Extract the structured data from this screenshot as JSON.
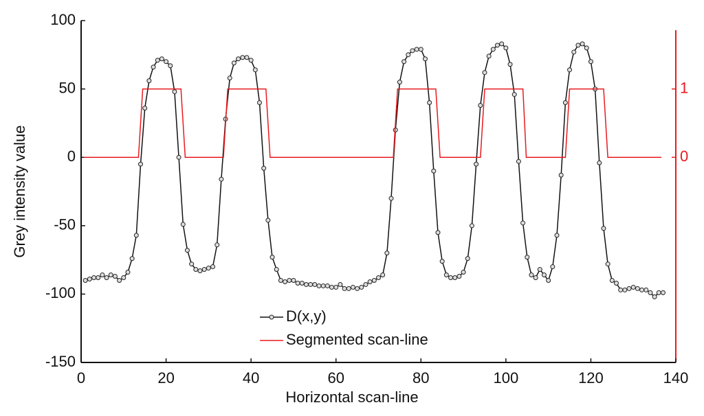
{
  "chart_data": {
    "type": "line",
    "xlabel": "Horizontal scan-line",
    "ylabel": "Grey intensity value",
    "xlim": [
      0,
      140
    ],
    "xticks": [
      0,
      20,
      40,
      60,
      80,
      100,
      120,
      140
    ],
    "ylim": [
      -150,
      100
    ],
    "yticks": [
      -150,
      -100,
      -50,
      0,
      50,
      100
    ],
    "y2lim": [
      -3,
      2
    ],
    "y2ticks": [
      0,
      1
    ],
    "y2color": "#e8191e",
    "legend": "lower center",
    "series": [
      {
        "name": "D(x,y)",
        "color": "#111111",
        "marker": "circle",
        "x": [
          1,
          2,
          3,
          4,
          5,
          6,
          7,
          8,
          9,
          10,
          11,
          12,
          13,
          14,
          15,
          16,
          17,
          18,
          19,
          20,
          21,
          22,
          23,
          24,
          25,
          26,
          27,
          28,
          29,
          30,
          31,
          32,
          33,
          34,
          35,
          36,
          37,
          38,
          39,
          40,
          41,
          42,
          43,
          44,
          45,
          46,
          47,
          48,
          49,
          50,
          51,
          52,
          53,
          54,
          55,
          56,
          57,
          58,
          59,
          60,
          61,
          62,
          63,
          64,
          65,
          66,
          67,
          68,
          69,
          70,
          71,
          72,
          73,
          74,
          75,
          76,
          77,
          78,
          79,
          80,
          81,
          82,
          83,
          84,
          85,
          86,
          87,
          88,
          89,
          90,
          91,
          92,
          93,
          94,
          95,
          96,
          97,
          98,
          99,
          100,
          101,
          102,
          103,
          104,
          105,
          106,
          107,
          108,
          109,
          110,
          111,
          112,
          113,
          114,
          115,
          116,
          117,
          118,
          119,
          120,
          121,
          122,
          123,
          124,
          125,
          126,
          127,
          128,
          129,
          130,
          131,
          132,
          133,
          134,
          135,
          136,
          137
        ],
        "values": [
          -90,
          -89,
          -88,
          -88,
          -86,
          -88,
          -86,
          -87,
          -90,
          -88,
          -84,
          -74,
          -57,
          -5,
          36,
          56,
          66,
          71,
          72,
          70,
          67,
          48,
          0,
          -49,
          -68,
          -78,
          -82,
          -83,
          -82,
          -81,
          -80,
          -64,
          -16,
          28,
          58,
          69,
          72,
          73,
          73,
          71,
          64,
          40,
          -8,
          -46,
          -73,
          -82,
          -90,
          -91,
          -90,
          -90,
          -92,
          -92,
          -93,
          -93,
          -93,
          -94,
          -94,
          -94,
          -95,
          -95,
          -93,
          -96,
          -96,
          -95,
          -96,
          -95,
          -93,
          -91,
          -90,
          -88,
          -86,
          -70,
          -30,
          20,
          55,
          70,
          75,
          78,
          79,
          79,
          72,
          40,
          -10,
          -55,
          -76,
          -86,
          -88,
          -88,
          -87,
          -84,
          -74,
          -50,
          -5,
          38,
          62,
          74,
          79,
          82,
          83,
          80,
          68,
          46,
          -3,
          -48,
          -73,
          -86,
          -88,
          -82,
          -86,
          -90,
          -80,
          -57,
          -13,
          40,
          64,
          77,
          82,
          83,
          80,
          70,
          50,
          -4,
          -52,
          -78,
          -90,
          -92,
          -97,
          -97,
          -96,
          -95,
          -96,
          -97,
          -97,
          -99,
          -102,
          -99,
          -99
        ]
      },
      {
        "name": "Segmented scan-line",
        "color": "#e8191e",
        "axis": "y2",
        "x": [
          0.6,
          13.5,
          14.5,
          23.5,
          24.5,
          33.5,
          34.5,
          43.5,
          44.5,
          73.5,
          74.5,
          83.5,
          84.5,
          94,
          95,
          104,
          104.8,
          114,
          115,
          123,
          124,
          136.6
        ],
        "values": [
          0,
          0,
          1,
          1,
          0,
          0,
          1,
          1,
          0,
          0,
          1,
          1,
          0,
          0,
          1,
          1,
          0,
          0,
          1,
          1,
          0,
          0
        ]
      }
    ]
  }
}
